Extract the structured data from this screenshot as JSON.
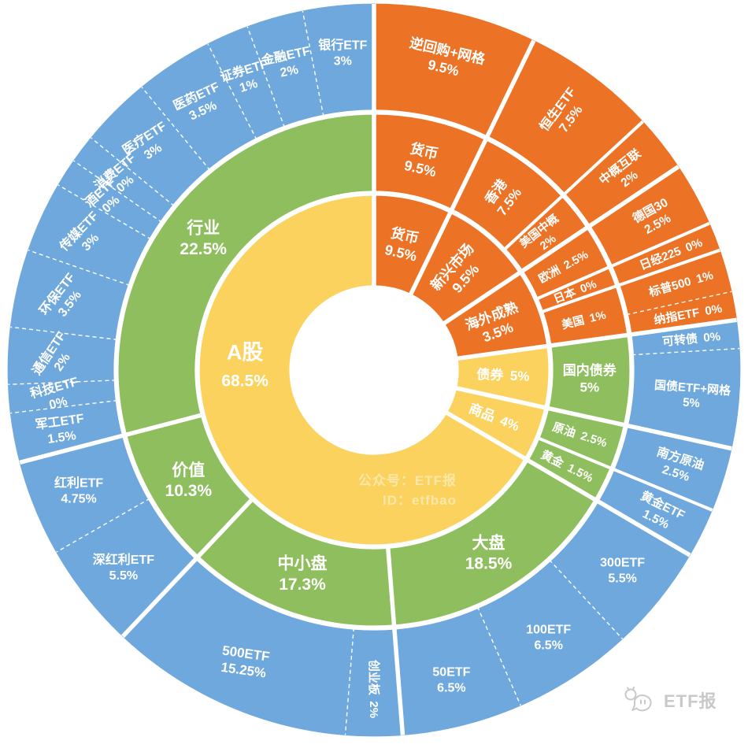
{
  "page": {
    "background": "#FFFFFF"
  },
  "palette": {
    "orange": "#EC7326",
    "yellow": "#FBD25E",
    "green": "#8FBE5E",
    "blue": "#6FA8DC",
    "label_text": "#FFFFFF",
    "divider": "#FFFFFF",
    "watermark_text": "#F9E8A8",
    "logo_gray": "#C9C9C9"
  },
  "watermark": {
    "line1": "公众号：ETF报",
    "line2": "ID：etfbao"
  },
  "logo": {
    "icon": "megaphone-icon",
    "text": "ETF报"
  },
  "chart_data": {
    "type": "sunburst",
    "unit": "%",
    "direction": "clockwise",
    "start_angle_deg": 0,
    "zero_slice_extra_weight": 2,
    "rings": 3,
    "tree": [
      {
        "n": "货币",
        "v": 9.5,
        "p": "9.5%",
        "o": "t",
        "grp": "os",
        "fs": 18,
        "c": [
          {
            "n": "货币",
            "v": 9.5,
            "p": "9.5%",
            "o": "t",
            "fs": 18,
            "c": [
              {
                "n": "逆回购+网格",
                "v": 9.5,
                "p": "9.5%",
                "o": "t",
                "fs": 17.5
              }
            ]
          }
        ]
      },
      {
        "n": "新兴市场",
        "v": 9.5,
        "p": "9.5%",
        "o": "r",
        "grp": "os",
        "fs": 18,
        "c": [
          {
            "n": "香港",
            "v": 7.5,
            "p": "7.5%",
            "o": "r",
            "fs": 17,
            "c": [
              {
                "n": "恒生ETF",
                "v": 7.5,
                "p": "7.5%",
                "o": "r",
                "fs": 16.5
              }
            ]
          },
          {
            "n": "美国中概",
            "v": 2,
            "p": "2%",
            "o": "r",
            "fs": 14.5,
            "c": [
              {
                "n": "中概互联",
                "v": 2,
                "p": "2%",
                "o": "r",
                "fs": 15.5
              }
            ]
          }
        ]
      },
      {
        "n": "海外成熟",
        "v": 3.5,
        "p": "3.5%",
        "o": "r",
        "grp": "os",
        "fs": 17.5,
        "c": [
          {
            "n": "欧洲",
            "v": 2.5,
            "p": "2.5%",
            "o": "r",
            "one": true,
            "fs": 14.5,
            "c": [
              {
                "n": "德国30",
                "v": 2.5,
                "p": "2.5%",
                "o": "r",
                "fs": 15.5
              }
            ]
          },
          {
            "n": "日本",
            "v": 0,
            "p": "0%",
            "o": "r",
            "one": true,
            "fs": 14.5,
            "c": [
              {
                "n": "日经225",
                "v": 0,
                "p": "0%",
                "o": "r",
                "one": true,
                "fs": 15
              }
            ]
          },
          {
            "n": "美国",
            "v": 1,
            "p": "1%",
            "o": "r",
            "one": true,
            "fs": 14.5,
            "c": [
              {
                "n": "标普500",
                "v": 1,
                "p": "1%",
                "o": "r",
                "one": true,
                "fs": 15
              },
              {
                "n": "纳指ETF",
                "v": 0,
                "p": "0%",
                "o": "r",
                "one": true,
                "fs": 15
              }
            ]
          }
        ]
      },
      {
        "n": "债券",
        "v": 5,
        "p": "5%",
        "o": "r",
        "grp": "dm",
        "one": true,
        "fs": 17,
        "c": [
          {
            "n": "国内债券",
            "v": 5,
            "p": "5%",
            "fs": 17,
            "c": [
              {
                "n": "可转债",
                "v": 0,
                "p": "0%",
                "o": "r",
                "one": true,
                "fs": 15
              },
              {
                "n": "国债ETF+网格",
                "v": 5,
                "p": "5%",
                "o": "r",
                "fs": 15
              }
            ]
          }
        ]
      },
      {
        "n": "商品",
        "v": 4,
        "p": "4%",
        "o": "r",
        "grp": "dm",
        "one": true,
        "fs": 17,
        "c": [
          {
            "n": "原油",
            "v": 2.5,
            "p": "2.5%",
            "o": "r",
            "one": true,
            "fs": 15,
            "c": [
              {
                "n": "南方原油",
                "v": 2.5,
                "p": "2.5%",
                "o": "r",
                "fs": 15.5
              }
            ]
          },
          {
            "n": "黄金",
            "v": 1.5,
            "p": "1.5%",
            "o": "r",
            "one": true,
            "fs": 15,
            "c": [
              {
                "n": "黄金ETF",
                "v": 1.5,
                "p": "1.5%",
                "o": "r",
                "fs": 15.5
              }
            ]
          }
        ]
      },
      {
        "n": "A股",
        "v": 68.5,
        "p": "68.5%",
        "grp": "dm",
        "fs": 27,
        "fs2": 21,
        "la": 272,
        "c": [
          {
            "n": "大盘",
            "v": 18.5,
            "p": "18.5%",
            "fs": 21,
            "c": [
              {
                "n": "300ETF",
                "v": 5.5,
                "p": "5.5%",
                "fs": 16
              },
              {
                "n": "100ETF",
                "v": 6.5,
                "p": "6.5%",
                "fs": 16
              },
              {
                "n": "50ETF",
                "v": 6.5,
                "p": "6.5%",
                "fs": 16
              }
            ]
          },
          {
            "n": "中小盘",
            "v": 17.3,
            "p": "17.3%",
            "fs": 21,
            "c": [
              {
                "n": "创业板",
                "v": 2,
                "p": "2%",
                "o": "r",
                "one": true,
                "fs": 15
              },
              {
                "n": "500ETF",
                "v": 15.25,
                "p": "15.25%",
                "rot": 8,
                "fs": 17
              }
            ]
          },
          {
            "n": "价值",
            "v": 10.3,
            "p": "10.3%",
            "fs": 21,
            "c": [
              {
                "n": "深红利ETF",
                "v": 5.5,
                "p": "5.5%",
                "fs": 16
              },
              {
                "n": "红利ETF",
                "v": 4.75,
                "p": "4.75%",
                "fs": 16
              }
            ]
          },
          {
            "n": "行业",
            "v": 22.5,
            "p": "22.5%",
            "fs": 21,
            "c": [
              {
                "n": "军工ETF",
                "v": 1.5,
                "p": "1.5%",
                "rot": -8,
                "fs": 16
              },
              {
                "n": "科技ETF",
                "v": 0,
                "p": "0%",
                "rot": -15,
                "fs": 16
              },
              {
                "n": "通信ETF",
                "v": 2,
                "p": "2%",
                "rot": -56,
                "fs": 16
              },
              {
                "n": "环保ETF",
                "v": 3.5,
                "p": "3.5%",
                "rot": -52,
                "fs": 16
              },
              {
                "n": "传媒ETF",
                "v": 3,
                "p": "3%",
                "rot": -46,
                "fs": 16
              },
              {
                "n": "酒ETF",
                "v": 0,
                "p": "0%",
                "rot": -42,
                "fs": 16
              },
              {
                "n": "消费ETF",
                "v": 0,
                "p": "0%",
                "rot": -40,
                "fs": 16
              },
              {
                "n": "医疗ETF",
                "v": 3,
                "p": "3%",
                "rot": -33,
                "fs": 16
              },
              {
                "n": "医药ETF",
                "v": 3.5,
                "p": "3.5%",
                "rot": -25,
                "fs": 16
              },
              {
                "n": "证券ETF",
                "v": 1,
                "p": "1%",
                "rot": -17,
                "fs": 16
              },
              {
                "n": "金融ETF",
                "v": 2,
                "p": "2%",
                "rot": -12,
                "fs": 16
              },
              {
                "n": "银行ETF",
                "v": 3,
                "p": "3%",
                "fs": 16
              }
            ]
          }
        ]
      }
    ]
  }
}
